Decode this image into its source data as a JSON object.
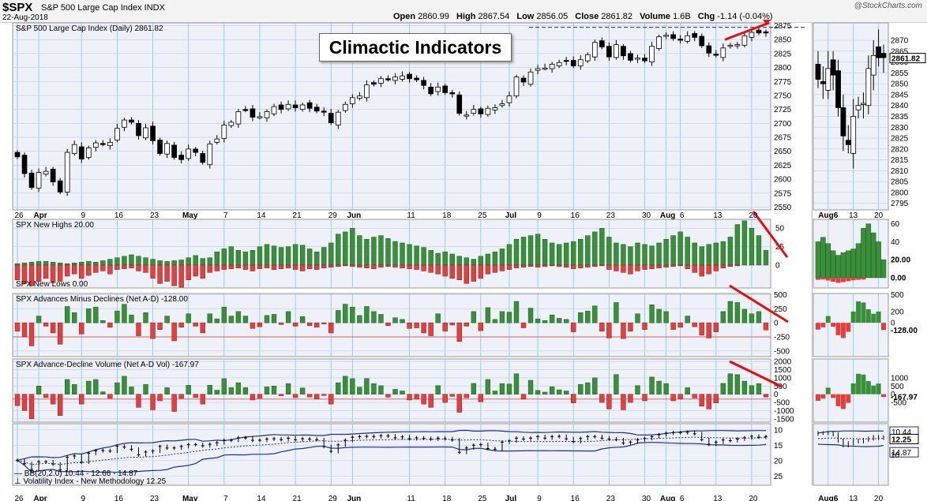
{
  "header": {
    "symbol": "$SPX",
    "name": "S&P 500 Large Cap Index INDX",
    "date": "22-Aug-2018",
    "brand": "@StockCharts.com",
    "open_label": "Open",
    "open": "2860.99",
    "high_label": "High",
    "high": "2867.54",
    "low_label": "Low",
    "low": "2856.05",
    "close_label": "Close",
    "close": "2861.82",
    "volume_label": "Volume",
    "volume": "1.6B",
    "chg_label": "Chg",
    "chg": "-1.14 (-0.04%)"
  },
  "callout": "Climactic Indicators",
  "panels": {
    "price": "S&P 500 Large Cap Index (Daily) 2861.82",
    "highs": "SPX New Highs 20.00",
    "lows": "SPX New Lows 0.00",
    "ad": "SPX Advances Minus Declines (Net A-D) -128.00",
    "adv": "SPX Advance-Decline Volume (Net A-D Vol) -167.97",
    "bb": "BB(20,2.0) 10.44 - 12.66 - 14.87",
    "vix": "Volatility Index - New Methodology 12.25"
  },
  "x_labels": [
    {
      "label": "26",
      "i": 0
    },
    {
      "label": "Apr",
      "i": 3
    },
    {
      "label": "9",
      "i": 9
    },
    {
      "label": "16",
      "i": 14
    },
    {
      "label": "23",
      "i": 19
    },
    {
      "label": "May",
      "i": 24
    },
    {
      "label": "7",
      "i": 29
    },
    {
      "label": "14",
      "i": 34
    },
    {
      "label": "21",
      "i": 39
    },
    {
      "label": "29",
      "i": 44
    },
    {
      "label": "Jun",
      "i": 47
    },
    {
      "label": "11",
      "i": 55
    },
    {
      "label": "18",
      "i": 60
    },
    {
      "label": "25",
      "i": 65
    },
    {
      "label": "Jul",
      "i": 69
    },
    {
      "label": "9",
      "i": 73
    },
    {
      "label": "16",
      "i": 78
    },
    {
      "label": "23",
      "i": 83
    },
    {
      "label": "30",
      "i": 88
    },
    {
      "label": "Aug",
      "i": 91
    },
    {
      "label": "6",
      "i": 93
    },
    {
      "label": "13",
      "i": 98
    },
    {
      "label": "20",
      "i": 103
    }
  ],
  "zoom_labels": [
    {
      "label": "Aug6",
      "i": 2
    },
    {
      "label": "13",
      "i": 7
    },
    {
      "label": "20",
      "i": 12
    }
  ],
  "right_values": {
    "price_close": "2861.82",
    "highs": "20.00",
    "lows": "0.00",
    "ad": "-128.00",
    "adv": "-167.97",
    "bb_top": "10.44",
    "bb_mid": "12.66",
    "vix": "12.25",
    "bb_bot": "14.87"
  },
  "colors": {
    "up": "#3a8f3a",
    "down": "#e0413e",
    "panel_bg": "#eef1f8",
    "trend": "#e01010",
    "band": "#1f2f8c"
  },
  "chart_data": {
    "type": "candlestick+bar",
    "title": "S&P 500 Large Cap Index (Daily)",
    "price_ylim": [
      2545,
      2880
    ],
    "price_ticks": [
      2550,
      2575,
      2600,
      2625,
      2650,
      2675,
      2700,
      2725,
      2750,
      2775,
      2800,
      2825,
      2850,
      2875
    ],
    "close": [
      2640,
      2610,
      2585,
      2612,
      2614,
      2595,
      2577,
      2648,
      2662,
      2636,
      2656,
      2665,
      2663,
      2666,
      2691,
      2706,
      2702,
      2678,
      2692,
      2669,
      2646,
      2664,
      2639,
      2635,
      2654,
      2648,
      2630,
      2663,
      2672,
      2697,
      2702,
      2721,
      2724,
      2711,
      2712,
      2721,
      2730,
      2725,
      2734,
      2728,
      2733,
      2727,
      2722,
      2720,
      2701,
      2720,
      2734,
      2746,
      2749,
      2769,
      2770,
      2780,
      2779,
      2783,
      2785,
      2780,
      2778,
      2768,
      2753,
      2765,
      2755,
      2753,
      2718,
      2715,
      2725,
      2717,
      2727,
      2728,
      2735,
      2749,
      2783,
      2774,
      2792,
      2798,
      2799,
      2806,
      2809,
      2811,
      2803,
      2814,
      2823,
      2845,
      2837,
      2819,
      2841,
      2821,
      2813,
      2817,
      2812,
      2838,
      2855,
      2858,
      2852,
      2850,
      2857,
      2854,
      2839,
      2826,
      2822,
      2835,
      2840,
      2841,
      2857,
      2863,
      2862,
      2862
    ],
    "price_volume_reference": [],
    "new_highs": [
      2,
      3,
      4,
      5,
      5,
      4,
      3,
      2,
      3,
      4,
      5,
      4,
      6,
      8,
      10,
      12,
      14,
      12,
      10,
      8,
      6,
      5,
      6,
      7,
      10,
      13,
      9,
      10,
      18,
      22,
      25,
      20,
      18,
      20,
      25,
      28,
      26,
      24,
      25,
      28,
      27,
      22,
      18,
      24,
      30,
      42,
      45,
      50,
      40,
      35,
      38,
      40,
      36,
      32,
      30,
      28,
      26,
      24,
      20,
      16,
      18,
      15,
      12,
      10,
      8,
      12,
      15,
      18,
      22,
      28,
      35,
      38,
      40,
      42,
      35,
      30,
      28,
      30,
      32,
      35,
      40,
      45,
      50,
      38,
      30,
      28,
      25,
      30,
      28,
      26,
      30,
      35,
      40,
      45,
      38,
      30,
      25,
      28,
      30,
      32,
      38,
      55,
      60,
      50,
      40,
      20
    ],
    "new_lows": [
      -20,
      -25,
      -28,
      -22,
      -18,
      -24,
      -22,
      -15,
      -12,
      -18,
      -14,
      -10,
      -8,
      -12,
      -6,
      -5,
      -4,
      -8,
      -10,
      -18,
      -25,
      -22,
      -28,
      -30,
      -20,
      -15,
      -18,
      -10,
      -8,
      -6,
      -5,
      -4,
      -6,
      -8,
      -5,
      -4,
      -6,
      -5,
      -4,
      -6,
      -8,
      -5,
      -6,
      -4,
      -3,
      -2,
      -1,
      -2,
      -3,
      -4,
      -5,
      -3,
      -2,
      -3,
      -4,
      -5,
      -6,
      -8,
      -10,
      -12,
      -15,
      -18,
      -20,
      -25,
      -22,
      -18,
      -12,
      -10,
      -8,
      -6,
      -4,
      -3,
      -2,
      -3,
      -2,
      -1,
      -2,
      -3,
      -5,
      -4,
      -3,
      -2,
      -1,
      -6,
      -8,
      -10,
      -12,
      -8,
      -6,
      -5,
      -4,
      -3,
      -2,
      -1,
      -5,
      -10,
      -15,
      -12,
      -8,
      -4,
      -2,
      -1,
      0,
      0,
      0,
      0
    ],
    "ad_ylim": [
      -600,
      520
    ],
    "ad_ticks": [
      500,
      250,
      0,
      -250,
      -500
    ],
    "net_ad": [
      -150,
      -250,
      -410,
      120,
      -60,
      -180,
      -380,
      290,
      180,
      -200,
      250,
      280,
      40,
      -80,
      210,
      330,
      140,
      -230,
      180,
      -280,
      -120,
      120,
      -320,
      -80,
      160,
      -60,
      -180,
      160,
      70,
      280,
      120,
      200,
      120,
      -100,
      -70,
      130,
      150,
      -30,
      200,
      -60,
      110,
      -50,
      -80,
      -20,
      -180,
      220,
      330,
      280,
      130,
      290,
      200,
      150,
      -50,
      90,
      60,
      -100,
      -90,
      -180,
      -230,
      160,
      -150,
      -40,
      -330,
      -60,
      200,
      -140,
      270,
      60,
      200,
      190,
      380,
      -90,
      260,
      70,
      40,
      140,
      80,
      60,
      -160,
      180,
      210,
      300,
      -150,
      -270,
      360,
      -280,
      -150,
      160,
      -120,
      320,
      240,
      200,
      -120,
      -80,
      120,
      -70,
      -220,
      -270,
      -160,
      200,
      380,
      360,
      240,
      160,
      200,
      -128
    ],
    "adv_ylim": [
      -1700,
      2150
    ],
    "adv_ticks": [
      2000,
      1500,
      1000,
      500,
      0,
      -500,
      -1000,
      -1500
    ],
    "net_adv": [
      -700,
      -1000,
      -1500,
      500,
      -200,
      -600,
      -1300,
      900,
      600,
      -600,
      800,
      900,
      150,
      -250,
      700,
      1100,
      450,
      -800,
      600,
      -950,
      -400,
      400,
      -1050,
      -250,
      550,
      -200,
      -600,
      550,
      250,
      950,
      400,
      700,
      400,
      -350,
      -250,
      450,
      500,
      -100,
      650,
      -200,
      380,
      -170,
      -270,
      -80,
      -600,
      700,
      1100,
      950,
      430,
      960,
      650,
      520,
      -180,
      300,
      200,
      -350,
      -300,
      -600,
      -800,
      530,
      -500,
      -130,
      -1100,
      -220,
      660,
      -460,
      900,
      200,
      650,
      620,
      1250,
      -300,
      850,
      230,
      130,
      460,
      270,
      200,
      -530,
      600,
      700,
      1000,
      -500,
      -900,
      1200,
      -950,
      -500,
      530,
      -400,
      1050,
      800,
      650,
      -400,
      -270,
      400,
      -230,
      -730,
      -900,
      -530,
      660,
      1250,
      1200,
      800,
      530,
      650,
      -168
    ],
    "vix_ylim": [
      28,
      8
    ],
    "vix_ticks": [
      10,
      15,
      20,
      25
    ],
    "vix": [
      19.9,
      21.0,
      22.9,
      20.4,
      20.4,
      21.1,
      23.0,
      18.9,
      18.5,
      20.5,
      17.6,
      16.8,
      16.7,
      16.9,
      15.3,
      15.6,
      16.3,
      18.1,
      17.2,
      16.9,
      15.4,
      15.9,
      15.9,
      15.4,
      14.8,
      14.8,
      15.2,
      14.7,
      14.2,
      13.4,
      13.4,
      12.6,
      12.6,
      13.4,
      13.4,
      13.0,
      12.9,
      13.2,
      12.7,
      13.2,
      12.9,
      13.0,
      13.2,
      15.4,
      17.0,
      14.9,
      13.4,
      12.4,
      12.2,
      12.1,
      12.2,
      11.9,
      12.0,
      12.6,
      12.3,
      12.9,
      12.6,
      12.8,
      13.0,
      12.7,
      12.9,
      13.3,
      17.3,
      15.9,
      15.0,
      14.8,
      16.1,
      16.3,
      14.0,
      13.6,
      12.7,
      13.0,
      12.7,
      12.2,
      12.7,
      12.2,
      12.1,
      12.9,
      13.8,
      12.8,
      12.2,
      12.2,
      12.7,
      13.0,
      13.2,
      14.3,
      14.0,
      13.3,
      12.8,
      12.2,
      11.6,
      11.1,
      10.9,
      10.9,
      10.8,
      11.3,
      13.2,
      14.7,
      14.0,
      13.3,
      13.5,
      13.0,
      12.6,
      12.1,
      12.4,
      12.2
    ],
    "bb_upper": [],
    "bb_lower": []
  }
}
